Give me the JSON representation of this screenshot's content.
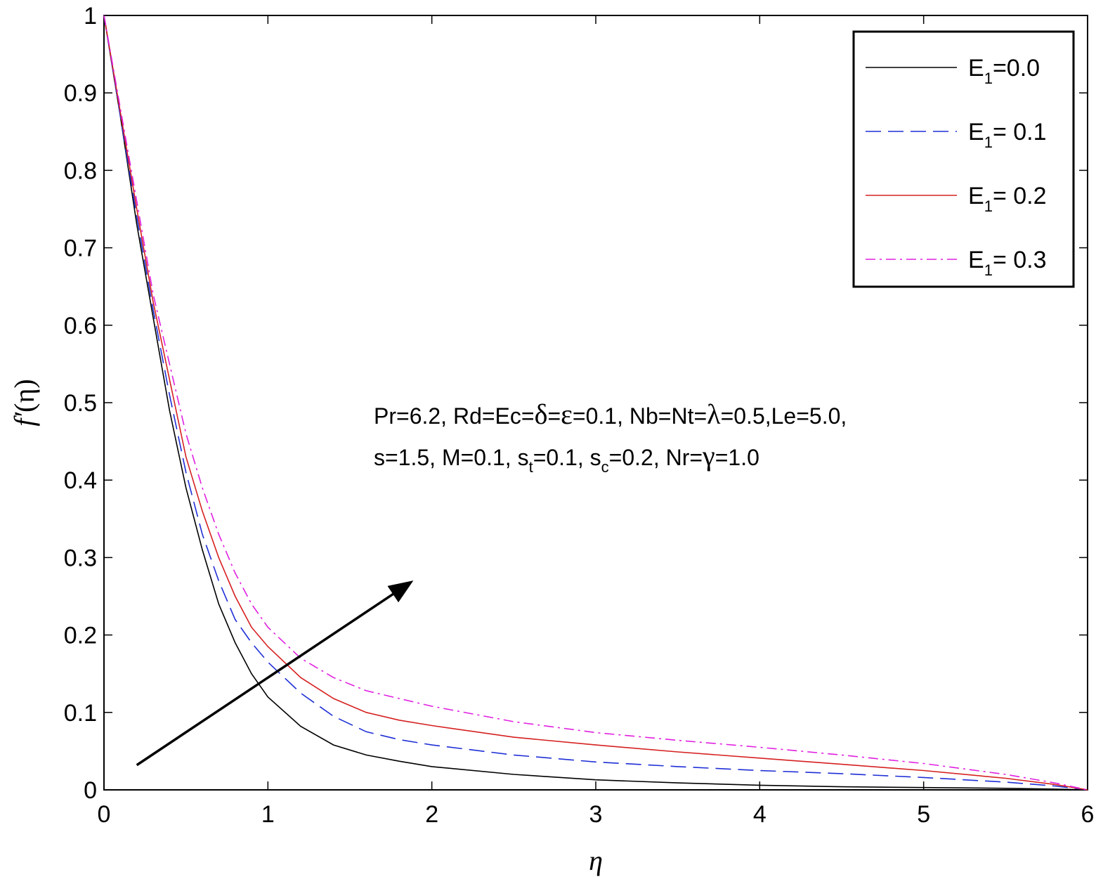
{
  "chart_data": {
    "type": "line",
    "xlabel": "η",
    "ylabel": {
      "main": "f′",
      "arg": "(η)"
    },
    "xlim": [
      0,
      6
    ],
    "ylim": [
      0,
      1
    ],
    "xticks": [
      "0",
      "1",
      "2",
      "3",
      "4",
      "5",
      "6"
    ],
    "yticks": [
      "0",
      "0.1",
      "0.2",
      "0.3",
      "0.4",
      "0.5",
      "0.6",
      "0.7",
      "0.8",
      "0.9",
      "1"
    ],
    "grid": false,
    "legend_position": "top-right",
    "x": [
      0,
      0.1,
      0.2,
      0.3,
      0.4,
      0.5,
      0.6,
      0.7,
      0.8,
      0.9,
      1.0,
      1.2,
      1.4,
      1.6,
      1.8,
      2.0,
      2.5,
      3.0,
      3.5,
      4.0,
      4.5,
      5.0,
      5.5,
      5.8,
      6.0
    ],
    "series": [
      {
        "name": {
          "base": "E",
          "sub": "1",
          "rest": "=0.0"
        },
        "color": "#000000",
        "dash": "none",
        "values": [
          1.0,
          0.87,
          0.73,
          0.61,
          0.49,
          0.39,
          0.31,
          0.24,
          0.19,
          0.15,
          0.12,
          0.082,
          0.058,
          0.045,
          0.037,
          0.03,
          0.02,
          0.013,
          0.009,
          0.006,
          0.004,
          0.003,
          0.002,
          0.001,
          0.0
        ]
      },
      {
        "name": {
          "base": "E",
          "sub": "1",
          "rest": "= 0.1"
        },
        "color": "#1f2fd6",
        "dash": "22 10",
        "values": [
          1.0,
          0.87,
          0.74,
          0.62,
          0.51,
          0.41,
          0.33,
          0.27,
          0.22,
          0.19,
          0.165,
          0.125,
          0.095,
          0.075,
          0.065,
          0.058,
          0.045,
          0.036,
          0.03,
          0.025,
          0.021,
          0.016,
          0.01,
          0.005,
          0.0
        ]
      },
      {
        "name": {
          "base": "E",
          "sub": "1",
          "rest": "= 0.2"
        },
        "color": "#d62020",
        "dash": "none",
        "values": [
          1.0,
          0.875,
          0.75,
          0.63,
          0.53,
          0.43,
          0.36,
          0.3,
          0.25,
          0.21,
          0.185,
          0.145,
          0.118,
          0.1,
          0.09,
          0.083,
          0.068,
          0.058,
          0.049,
          0.041,
          0.033,
          0.025,
          0.015,
          0.007,
          0.0
        ]
      },
      {
        "name": {
          "base": "E",
          "sub": "1",
          "rest": "= 0.3"
        },
        "color": "#e020e0",
        "dash": "14 6 3 6",
        "values": [
          1.0,
          0.88,
          0.76,
          0.64,
          0.55,
          0.46,
          0.39,
          0.33,
          0.28,
          0.24,
          0.21,
          0.17,
          0.145,
          0.128,
          0.118,
          0.108,
          0.088,
          0.074,
          0.064,
          0.055,
          0.045,
          0.034,
          0.02,
          0.009,
          0.0
        ]
      }
    ],
    "annotation": {
      "line1": {
        "a": "Pr=6.2, Rd=Ec=",
        "g1": "δ",
        "b": "=",
        "g2": "ε",
        "c": "=0.1, Nb=Nt=",
        "g3": "λ",
        "d": "=0.5,Le=5.0,"
      },
      "line2": {
        "a": "s=1.5, M=0.1, s",
        "sub1": "t",
        "b": "=0.1, s",
        "sub2": "c",
        "c": "=0.2, Nr=",
        "g1": "γ",
        "d": "=1.0"
      }
    },
    "arrow": {
      "from": [
        0.2,
        0.032
      ],
      "to": [
        1.85,
        0.265
      ]
    }
  }
}
